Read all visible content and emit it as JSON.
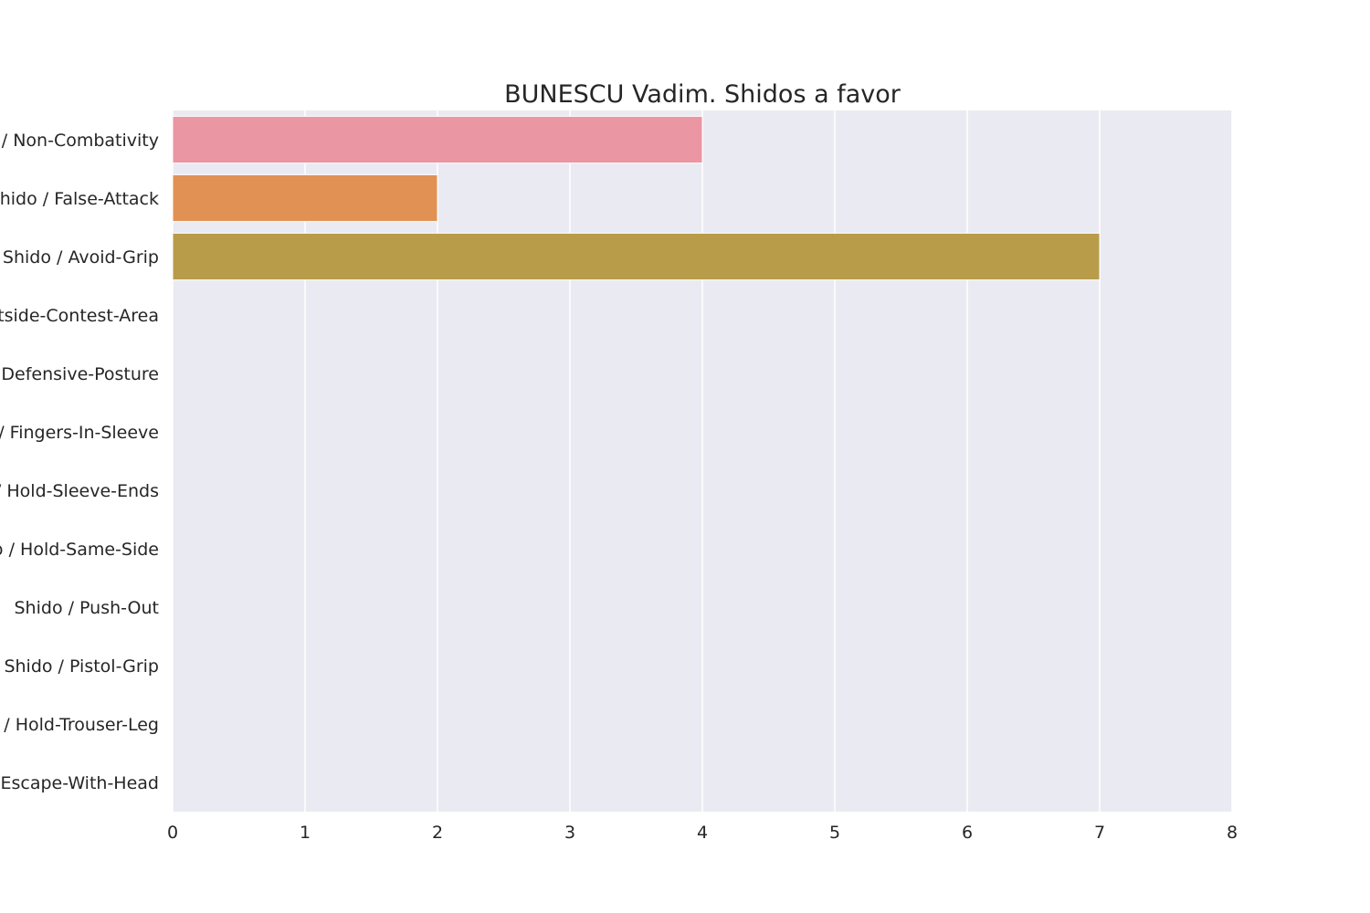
{
  "chart_data": {
    "type": "bar",
    "orientation": "horizontal",
    "title": "BUNESCU Vadim. Shidos a favor",
    "xlabel": "",
    "ylabel": "",
    "categories": [
      "Shido / Non-Combativity",
      "Shido / False-Attack",
      "Shido / Avoid-Grip",
      "Shido / Outside-Contest-Area",
      "Shido / Defensive-Posture",
      "Shido / Fingers-In-Sleeve",
      "Shido / Hold-Sleeve-Ends",
      "Shido / Hold-Same-Side",
      "Shido / Push-Out",
      "Shido / Pistol-Grip",
      "Shido / Hold-Trouser-Leg",
      "Shido / Escape-With-Head"
    ],
    "values": [
      4,
      2,
      7,
      0,
      0,
      0,
      0,
      0,
      0,
      0,
      0,
      0
    ],
    "xlim": [
      0,
      8
    ],
    "xticks": [
      "0",
      "1",
      "2",
      "3",
      "4",
      "5",
      "6",
      "7",
      "8"
    ],
    "grid": true,
    "colors": {
      "background": "#eaeaf2",
      "grid": "#ffffff",
      "text": "#262626",
      "bars": [
        "#ea96a3",
        "#e19153",
        "#b89c49",
        "#8fa94a",
        "#51ae4d",
        "#53ad8d",
        "#56aaa8",
        "#59a8c2",
        "#6aa0de",
        "#a895e2",
        "#d68ae2",
        "#e98fc4"
      ]
    }
  }
}
